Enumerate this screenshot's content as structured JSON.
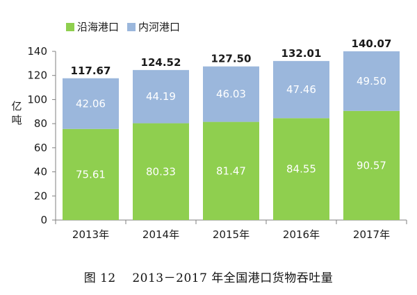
{
  "colors": {
    "coastal": "#8fcf4f",
    "inland": "#9bb7dc",
    "axis": "#7f7f7f",
    "grid": "#d9d9d9",
    "segment_text": "#ffffff"
  },
  "caption": {
    "figure_no": "图 12",
    "text": "2013－2017 年全国港口货物吞吐量"
  },
  "chart_data": {
    "type": "bar",
    "stacked": true,
    "categories": [
      "2013年",
      "2014年",
      "2015年",
      "2016年",
      "2017年"
    ],
    "series": [
      {
        "name": "沿海港口",
        "values": [
          75.61,
          80.33,
          81.47,
          84.55,
          90.57
        ]
      },
      {
        "name": "内河港口",
        "values": [
          42.06,
          44.19,
          46.03,
          47.46,
          49.5
        ]
      }
    ],
    "totals": [
      "117.67",
      "124.52",
      "127.50",
      "132.01",
      "140.07"
    ],
    "series_labels": [
      [
        "75.61",
        "80.33",
        "81.47",
        "84.55",
        "90.57"
      ],
      [
        "42.06",
        "44.19",
        "46.03",
        "47.46",
        "49.50"
      ]
    ],
    "ylabel": "亿吨",
    "ylim": [
      0,
      140
    ],
    "yticks": [
      0,
      20,
      40,
      60,
      80,
      100,
      120,
      140
    ],
    "legend_position": "top-left",
    "grid": false
  }
}
